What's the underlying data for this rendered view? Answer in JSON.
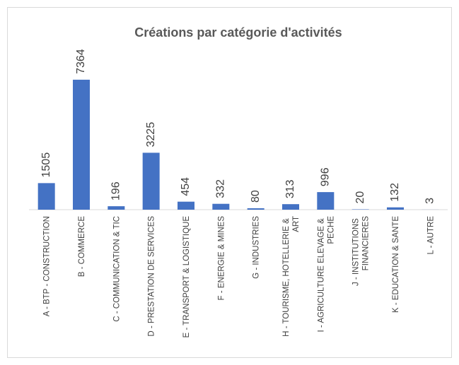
{
  "chart_data": {
    "type": "bar",
    "title": "Créations par catégorie d'activités",
    "categories": [
      "A - BTP - CONSTRUCTION",
      "B - COMMERCE",
      "C - COMMUNICATION & TIC",
      "D - PRESTATION DE SERVICES",
      "E - TRANSPORT & LOGISTIQUE",
      "F - ENERGIE & MINES",
      "G - INDUSTRIES",
      "H - TOURISME, HOTELLERIE & ART",
      "I - AGRICULTURE ELEVAGE & PECHE",
      "J - INSTITUTIONS FINANCIERES",
      "K - EDUCATION & SANTE",
      "L - AUTRE"
    ],
    "values": [
      1505,
      7364,
      196,
      3225,
      454,
      332,
      80,
      313,
      996,
      20,
      132,
      3
    ],
    "color": "#4472c4",
    "ylim": [
      0,
      8000
    ]
  }
}
